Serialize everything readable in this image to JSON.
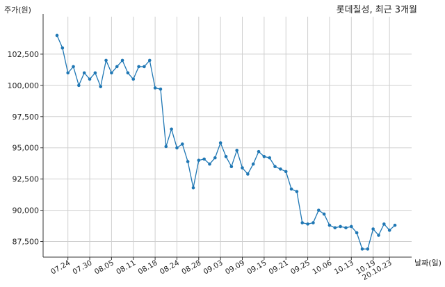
{
  "chart_data": {
    "type": "line",
    "title": "롯데칠성, 최근 3개월",
    "ylabel": "주가(원)",
    "xlabel": "날짜(일)",
    "ylim": [
      86250,
      105500
    ],
    "yticks": [
      87500,
      90000,
      92500,
      95000,
      97500,
      100000,
      102500
    ],
    "ytick_labels": [
      "87,500",
      "90,000",
      "92,500",
      "95,000",
      "97,500",
      "100,000",
      "102,500"
    ],
    "xticks": [
      {
        "label": "07.24",
        "index": 2
      },
      {
        "label": "07.30",
        "index": 6
      },
      {
        "label": "08.05",
        "index": 10
      },
      {
        "label": "08.11",
        "index": 14
      },
      {
        "label": "08.18",
        "index": 18
      },
      {
        "label": "08.24",
        "index": 22
      },
      {
        "label": "08.28",
        "index": 26
      },
      {
        "label": "09.03",
        "index": 30
      },
      {
        "label": "09.09",
        "index": 34
      },
      {
        "label": "09.15",
        "index": 38
      },
      {
        "label": "09.21",
        "index": 42
      },
      {
        "label": "09.25",
        "index": 46
      },
      {
        "label": "10.06",
        "index": 50
      },
      {
        "label": "10.13",
        "index": 54
      },
      {
        "label": "10.19",
        "index": 58
      },
      {
        "label": "20.10.23",
        "index": 61
      }
    ],
    "grid": true,
    "line_color": "#1f77b4",
    "series": [
      {
        "values": [
          104000,
          103000,
          101000,
          101500,
          100000,
          101000,
          100500,
          101000,
          99900,
          102000,
          101000,
          101500,
          102000,
          101000,
          100500,
          101500,
          101500,
          102000,
          99800,
          99700,
          95100,
          96500,
          95000,
          95300,
          93900,
          91800,
          94000,
          94100,
          93700,
          94200,
          95400,
          94300,
          93500,
          94800,
          93400,
          92900,
          93700,
          94700,
          94300,
          94200,
          93500,
          93300,
          93100,
          91700,
          91500,
          89000,
          88900,
          89000,
          90000,
          89700,
          88800,
          88600,
          88700,
          88600,
          88700,
          88200,
          86900,
          86900,
          88500,
          88000,
          88900,
          88400,
          88800
        ]
      }
    ]
  }
}
